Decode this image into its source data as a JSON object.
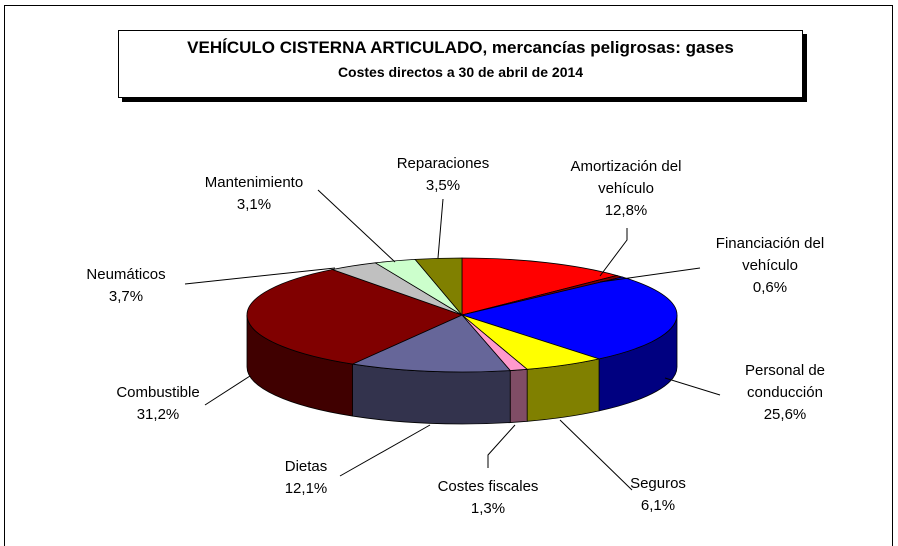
{
  "chart_data": {
    "type": "pie3d",
    "title": "VEHÍCULO CISTERNA ARTICULADO, mercancías peligrosas: gases",
    "subtitle": "Costes directos a 30 de abril de 2014",
    "categories": [
      "Amortización del vehículo",
      "Financiación del vehículo",
      "Personal de conducción",
      "Seguros",
      "Costes fiscales",
      "Dietas",
      "Combustible",
      "Neumáticos",
      "Mantenimiento",
      "Reparaciones"
    ],
    "values": [
      12.8,
      0.6,
      25.6,
      6.1,
      1.3,
      12.1,
      31.2,
      3.7,
      3.1,
      3.5
    ],
    "value_labels": [
      "12,8%",
      "0,6%",
      "25,6%",
      "6,1%",
      "1,3%",
      "12,1%",
      "31,2%",
      "3,7%",
      "3,1%",
      "3,5%"
    ],
    "colors": [
      "#ff0000",
      "#800000",
      "#0000ff",
      "#ffff00",
      "#ff99cc",
      "#666699",
      "#800000",
      "#c0c0c0",
      "#ccffcc",
      "#808000"
    ]
  }
}
